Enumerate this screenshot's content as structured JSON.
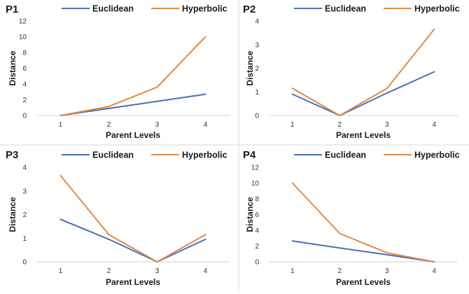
{
  "colors": {
    "euclidean": "#4a6fb5",
    "hyperbolic": "#e08a45",
    "axis": "#d0d0d0"
  },
  "chart_data": [
    {
      "type": "line",
      "title": "P1",
      "categories": [
        "1",
        "2",
        "3",
        "4"
      ],
      "series": [
        {
          "name": "Euclidean",
          "values": [
            0,
            0.9,
            1.8,
            2.7
          ]
        },
        {
          "name": "Hyperbolic",
          "values": [
            0,
            1.15,
            3.6,
            10.0
          ]
        }
      ],
      "xlabel": "Parent Levels",
      "ylabel": "Distance",
      "ylim": [
        0,
        12
      ],
      "yticks": [
        0,
        2,
        4,
        6,
        8,
        10,
        12
      ],
      "grid": false,
      "legend": "top"
    },
    {
      "type": "line",
      "title": "P2",
      "categories": [
        "1",
        "2",
        "3",
        "4"
      ],
      "series": [
        {
          "name": "Euclidean",
          "values": [
            0.9,
            0,
            0.95,
            1.85
          ]
        },
        {
          "name": "Hyperbolic",
          "values": [
            1.15,
            0,
            1.15,
            3.65
          ]
        }
      ],
      "xlabel": "Parent Levels",
      "ylabel": "Distance",
      "ylim": [
        0,
        4
      ],
      "yticks": [
        0,
        1,
        2,
        3,
        4
      ],
      "grid": false,
      "legend": "top"
    },
    {
      "type": "line",
      "title": "P3",
      "categories": [
        "1",
        "2",
        "3",
        "4"
      ],
      "series": [
        {
          "name": "Euclidean",
          "values": [
            1.8,
            0.95,
            0,
            0.95
          ]
        },
        {
          "name": "Hyperbolic",
          "values": [
            3.65,
            1.15,
            0,
            1.15
          ]
        }
      ],
      "xlabel": "Parent Levels",
      "ylabel": "Distance",
      "ylim": [
        0,
        4
      ],
      "yticks": [
        0,
        1,
        2,
        3,
        4
      ],
      "grid": false,
      "legend": "top"
    },
    {
      "type": "line",
      "title": "P4",
      "categories": [
        "1",
        "2",
        "3",
        "4"
      ],
      "series": [
        {
          "name": "Euclidean",
          "values": [
            2.65,
            1.75,
            0.9,
            0
          ]
        },
        {
          "name": "Hyperbolic",
          "values": [
            10.0,
            3.6,
            1.15,
            0
          ]
        }
      ],
      "xlabel": "Parent Levels",
      "ylabel": "Distance",
      "ylim": [
        0,
        12
      ],
      "yticks": [
        0,
        2,
        4,
        6,
        8,
        10,
        12
      ],
      "grid": false,
      "legend": "top"
    }
  ]
}
